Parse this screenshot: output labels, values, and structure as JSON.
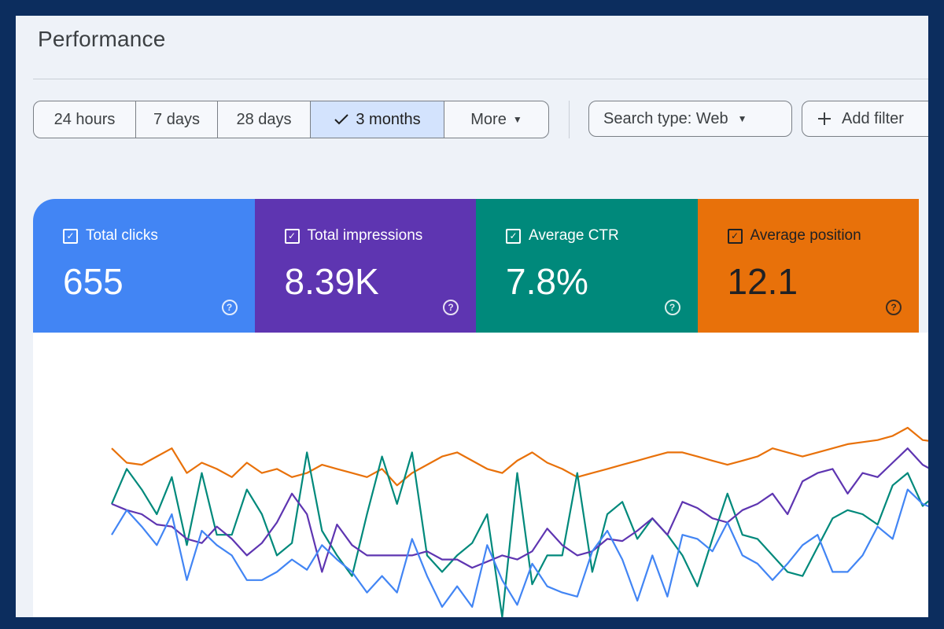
{
  "header": {
    "title": "Performance"
  },
  "date_range": {
    "options": [
      {
        "label": "24 hours",
        "selected": false
      },
      {
        "label": "7 days",
        "selected": false
      },
      {
        "label": "28 days",
        "selected": false
      },
      {
        "label": "3 months",
        "selected": true
      },
      {
        "label": "More",
        "selected": false
      }
    ]
  },
  "filters": {
    "search_type_label": "Search type: Web",
    "add_filter_label": "Add filter"
  },
  "metrics": [
    {
      "label": "Total clicks",
      "value": "655",
      "color": "#4285f4",
      "text_color": "#ffffff"
    },
    {
      "label": "Total impressions",
      "value": "8.39K",
      "color": "#5e35b1",
      "text_color": "#ffffff"
    },
    {
      "label": "Average CTR",
      "value": "7.8%",
      "color": "#00897b",
      "text_color": "#ffffff"
    },
    {
      "label": "Average position",
      "value": "12.1",
      "color": "#e8710a",
      "text_color": "#202124"
    }
  ],
  "chart_data": {
    "type": "line",
    "x": [
      1,
      2,
      3,
      4,
      5,
      6,
      7,
      8,
      9,
      10,
      11,
      12,
      13,
      14,
      15,
      16,
      17,
      18,
      19,
      20,
      21,
      22,
      23,
      24,
      25,
      26,
      27,
      28,
      29,
      30,
      31,
      32,
      33,
      34,
      35,
      36,
      37,
      38,
      39,
      40,
      41,
      42,
      43,
      44,
      45,
      46,
      47,
      48,
      49,
      50,
      51,
      52,
      53,
      54,
      55,
      56
    ],
    "series": [
      {
        "name": "Total clicks",
        "color": "#4285f4",
        "values": [
          0.4,
          0.52,
          0.44,
          0.35,
          0.5,
          0.18,
          0.42,
          0.35,
          0.3,
          0.18,
          0.18,
          0.22,
          0.28,
          0.23,
          0.35,
          0.28,
          0.22,
          0.12,
          0.2,
          0.12,
          0.38,
          0.2,
          0.05,
          0.15,
          0.05,
          0.35,
          0.18,
          0.06,
          0.26,
          0.15,
          0.12,
          0.1,
          0.32,
          0.42,
          0.28,
          0.08,
          0.3,
          0.1,
          0.4,
          0.38,
          0.32,
          0.46,
          0.3,
          0.26,
          0.18,
          0.26,
          0.35,
          0.4,
          0.22,
          0.22,
          0.3,
          0.44,
          0.38,
          0.62,
          0.55,
          0.52
        ]
      },
      {
        "name": "Total impressions",
        "color": "#5e35b1",
        "values": [
          0.55,
          0.52,
          0.5,
          0.45,
          0.44,
          0.38,
          0.36,
          0.44,
          0.38,
          0.3,
          0.36,
          0.46,
          0.6,
          0.5,
          0.22,
          0.45,
          0.35,
          0.3,
          0.3,
          0.3,
          0.3,
          0.32,
          0.28,
          0.28,
          0.24,
          0.27,
          0.3,
          0.28,
          0.32,
          0.43,
          0.35,
          0.3,
          0.32,
          0.38,
          0.37,
          0.42,
          0.48,
          0.4,
          0.56,
          0.53,
          0.48,
          0.46,
          0.52,
          0.55,
          0.6,
          0.5,
          0.66,
          0.7,
          0.72,
          0.6,
          0.7,
          0.68,
          0.75,
          0.82,
          0.74,
          0.7
        ]
      },
      {
        "name": "Average CTR",
        "color": "#00897b",
        "values": [
          0.55,
          0.72,
          0.62,
          0.5,
          0.68,
          0.35,
          0.7,
          0.4,
          0.4,
          0.62,
          0.5,
          0.3,
          0.36,
          0.8,
          0.42,
          0.3,
          0.2,
          0.5,
          0.78,
          0.55,
          0.8,
          0.3,
          0.22,
          0.3,
          0.36,
          0.5,
          0.0,
          0.7,
          0.16,
          0.3,
          0.3,
          0.7,
          0.22,
          0.5,
          0.56,
          0.38,
          0.48,
          0.4,
          0.3,
          0.15,
          0.38,
          0.6,
          0.4,
          0.38,
          0.3,
          0.22,
          0.2,
          0.34,
          0.48,
          0.52,
          0.5,
          0.45,
          0.64,
          0.7,
          0.54,
          0.6
        ]
      },
      {
        "name": "Average position",
        "color": "#e8710a",
        "values": [
          0.82,
          0.75,
          0.74,
          0.78,
          0.82,
          0.7,
          0.75,
          0.72,
          0.68,
          0.75,
          0.7,
          0.72,
          0.68,
          0.7,
          0.74,
          0.72,
          0.7,
          0.68,
          0.72,
          0.64,
          0.7,
          0.74,
          0.78,
          0.8,
          0.76,
          0.72,
          0.7,
          0.76,
          0.8,
          0.75,
          0.72,
          0.68,
          0.7,
          0.72,
          0.74,
          0.76,
          0.78,
          0.8,
          0.8,
          0.78,
          0.76,
          0.74,
          0.76,
          0.78,
          0.82,
          0.8,
          0.78,
          0.8,
          0.82,
          0.84,
          0.85,
          0.86,
          0.88,
          0.92,
          0.86,
          0.85
        ]
      }
    ],
    "ylim": [
      0,
      1
    ],
    "grid": false,
    "title": "",
    "xlabel": "",
    "ylabel": ""
  }
}
